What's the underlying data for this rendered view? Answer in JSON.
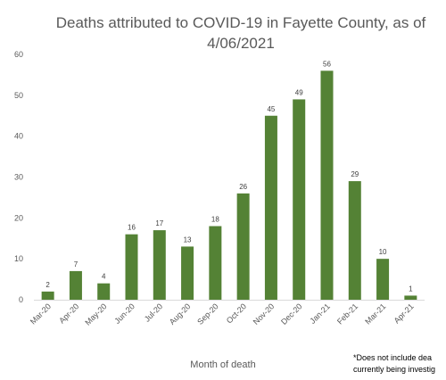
{
  "chart_data": {
    "type": "bar",
    "title": "Deaths attributed to COVID-19 in Fayette County, as of 4/06/2021",
    "xlabel": "Month of death",
    "ylabel": "",
    "ylim": [
      0,
      60
    ],
    "yticks": [
      0,
      10,
      20,
      30,
      40,
      50,
      60
    ],
    "grid": false,
    "legend": "none",
    "bar_color": "#548235",
    "categories": [
      "Mar-20",
      "Apr-20",
      "May-20",
      "Jun-20",
      "Jul-20",
      "Aug-20",
      "Sep-20",
      "Oct-20",
      "Nov-20",
      "Dec-20",
      "Jan-21",
      "Feb-21",
      "Mar-21",
      "Apr-21"
    ],
    "values": [
      2,
      7,
      4,
      16,
      17,
      13,
      18,
      26,
      45,
      49,
      56,
      29,
      10,
      1
    ],
    "footnote": [
      "*Does not include dea",
      "currently being investig"
    ]
  }
}
